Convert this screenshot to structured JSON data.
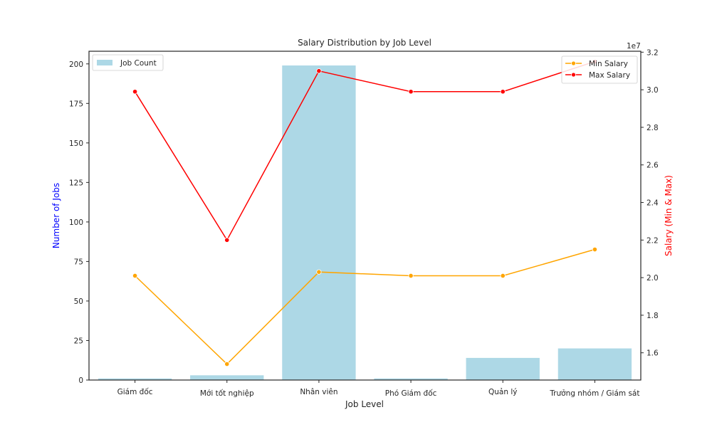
{
  "chart_data": {
    "type": "bar",
    "title": "Salary Distribution by Job Level",
    "xlabel": "Job Level",
    "ylabel_left": "Number of Jobs",
    "ylabel_right": "Salary (Min & Max)",
    "right_axis_offset_label": "1e7",
    "categories": [
      "Giám đốc",
      "Mới tốt nghiệp",
      "Nhân viên",
      "Phó Giám đốc",
      "Quản lý",
      "Trưởng nhóm / Giám sát"
    ],
    "bar_series": {
      "name": "Job Count",
      "values": [
        1,
        3,
        199,
        1,
        14,
        20
      ]
    },
    "line_series": [
      {
        "name": "Min Salary",
        "values": [
          20100000,
          15400000,
          20300000,
          20100000,
          20100000,
          21500000
        ]
      },
      {
        "name": "Max Salary",
        "values": [
          29900000,
          22000000,
          31000000,
          29900000,
          29900000,
          31500000
        ]
      }
    ],
    "ylim_left": [
      0,
      208
    ],
    "yticks_left": [
      0,
      25,
      50,
      75,
      100,
      125,
      150,
      175,
      200
    ],
    "ylim_right": [
      14550000,
      32050000
    ],
    "yticks_right_scaled": [
      1.6,
      1.8,
      2.0,
      2.2,
      2.4,
      2.6,
      2.8,
      3.0,
      3.2
    ],
    "legend_bar_position": "upper-left",
    "legend_lines_position": "upper-right",
    "grid": false
  },
  "colors": {
    "bar": "#add8e6",
    "min_line": "#ffa500",
    "max_line": "#ff0000",
    "left_label": "#0000ff",
    "right_label": "#ff0000",
    "axis": "#262626"
  }
}
